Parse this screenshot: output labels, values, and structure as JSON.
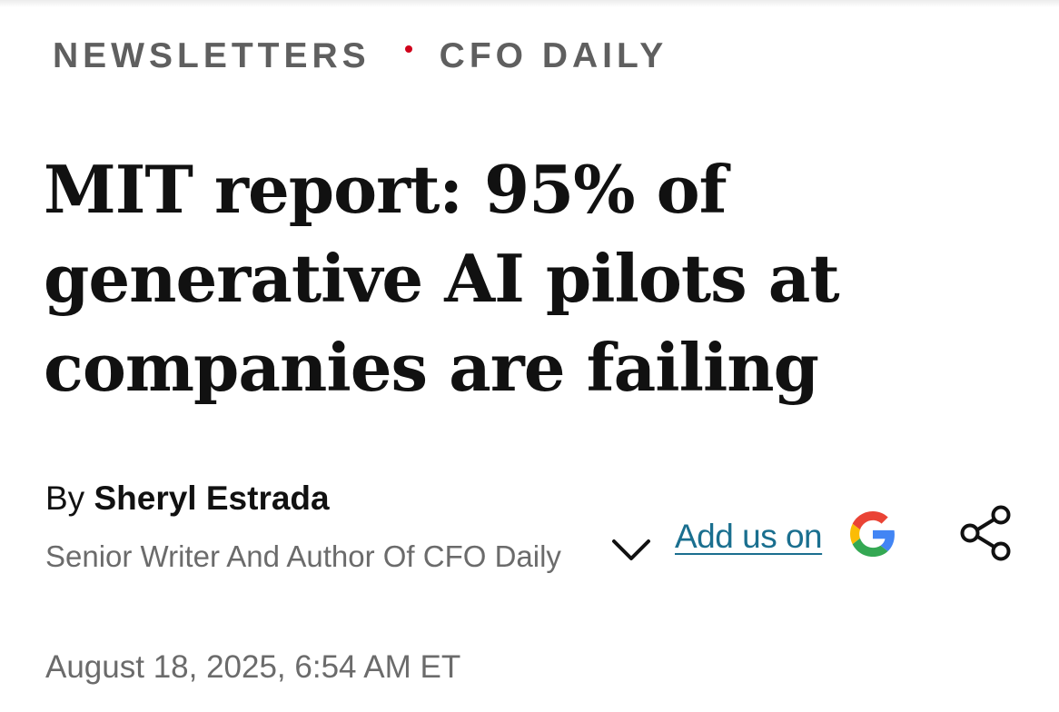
{
  "breadcrumb": {
    "section": "NEWSLETTERS",
    "subsection": "CFO DAILY",
    "separator_color": "#d0021b"
  },
  "article": {
    "headline": "MIT report: 95% of generative AI pilots at companies are failing",
    "byline_prefix": "By",
    "author_name": "Sheryl Estrada",
    "author_title": "Senior Writer And Author Of CFO Daily",
    "date": "August 18, 2025, 6:54 AM ET"
  },
  "actions": {
    "expand_icon": "chevron-down-icon",
    "add_us_label": "Add us on",
    "add_us_icon": "google-g-icon",
    "share_icon": "share-icon",
    "link_color": "#1a6f8f"
  }
}
